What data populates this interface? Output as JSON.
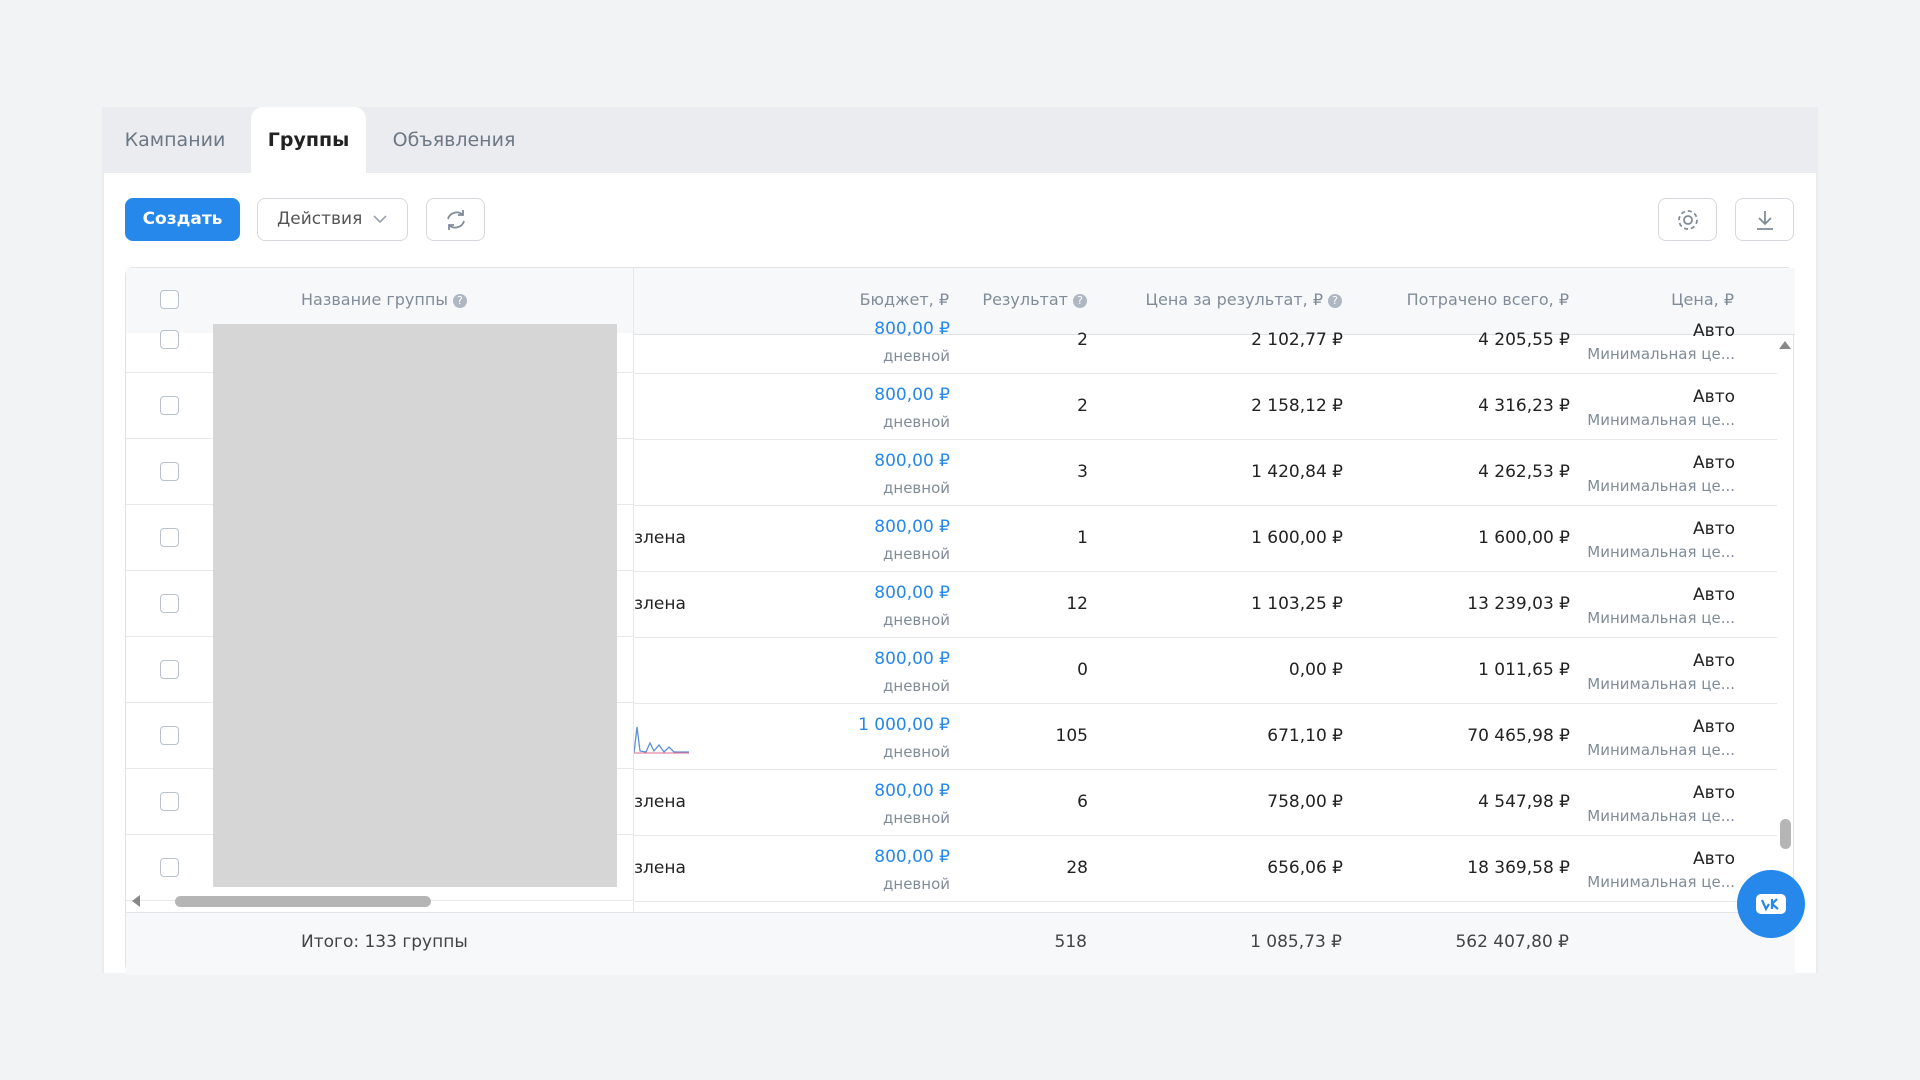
{
  "tabs": [
    "Кампании",
    "Группы",
    "Объявления"
  ],
  "toolbar": {
    "create": "Создать",
    "actions": "Действия"
  },
  "table": {
    "headers": [
      "Название группы",
      "Бюджет, ₽",
      "Результат",
      "Цена за результат, ₽",
      "Потрачено всего, ₽",
      "Цена, ₽"
    ],
    "rows": [
      [
        null,
        "800,00 ₽",
        "дневной",
        2,
        "2 102,77 ₽",
        "4 205,55 ₽",
        "Авто",
        "Минимальная це..."
      ],
      [
        null,
        "800,00 ₽",
        "дневной",
        2,
        "2 158,12 ₽",
        "4 316,23 ₽",
        "Авто",
        "Минимальная це..."
      ],
      [
        null,
        "800,00 ₽",
        "дневной",
        3,
        "1 420,84 ₽",
        "4 262,53 ₽",
        "Авто",
        "Минимальная це..."
      ],
      [
        "злена",
        "800,00 ₽",
        "дневной",
        1,
        "1 600,00 ₽",
        "1 600,00 ₽",
        "Авто",
        "Минимальная це..."
      ],
      [
        "злена",
        "800,00 ₽",
        "дневной",
        12,
        "1 103,25 ₽",
        "13 239,03 ₽",
        "Авто",
        "Минимальная це..."
      ],
      [
        null,
        "800,00 ₽",
        "дневной",
        0,
        "0,00 ₽",
        "1 011,65 ₽",
        "Авто",
        "Минимальная це..."
      ],
      [
        null,
        "1 000,00 ₽",
        "дневной",
        105,
        "671,10 ₽",
        "70 465,98 ₽",
        "Авто",
        "Минимальная це..."
      ],
      [
        "злена",
        "800,00 ₽",
        "дневной",
        6,
        "758,00 ₽",
        "4 547,98 ₽",
        "Авто",
        "Минимальная це..."
      ],
      [
        "злена",
        "800,00 ₽",
        "дневной",
        28,
        "656,06 ₽",
        "18 369,58 ₽",
        "Авто",
        "Минимальная це..."
      ]
    ],
    "footer": {
      "label": "Итого: 133 группы",
      "result": 518,
      "price_per_result": "1 085,73 ₽",
      "spent": "562 407,80 ₽"
    }
  }
}
